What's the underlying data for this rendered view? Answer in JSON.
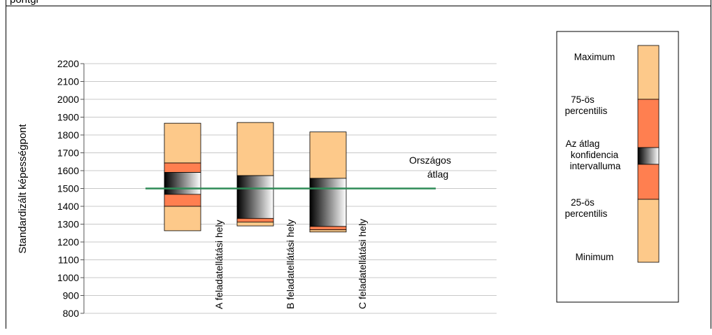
{
  "header": {
    "partial_text": "  pontgi            "
  },
  "chart_data": {
    "type": "box",
    "ylabel": "Standardizált képességpont",
    "ylim": [
      800,
      2200
    ],
    "yticks": [
      800,
      900,
      1000,
      1100,
      1200,
      1300,
      1400,
      1500,
      1600,
      1700,
      1800,
      1900,
      2000,
      2100,
      2200
    ],
    "grid": true,
    "categories": [
      "A feladatellátási hely",
      "B feladatellátási hely",
      "C feladatellátási hely"
    ],
    "boxes": [
      {
        "min": 1263,
        "p25": 1400,
        "ci_low": 1467,
        "ci_high": 1590,
        "p75": 1643,
        "max": 1866
      },
      {
        "min": 1290,
        "p25": 1312,
        "ci_low": 1332,
        "ci_high": 1572,
        "p75": 1572,
        "max": 1870
      },
      {
        "min": 1256,
        "p25": 1268,
        "ci_low": 1287,
        "ci_high": 1557,
        "p75": 1557,
        "max": 1817
      }
    ],
    "reference_line": {
      "label_line1": "Országos",
      "label_line2": "átlag",
      "value": 1500,
      "color": "#2e8b57"
    },
    "colors": {
      "outer": "#fdc98a",
      "inner": "#ff7f50",
      "ci_dark": "#000000",
      "ci_light": "#ffffff",
      "grid": "#c8c8c8"
    },
    "legend": {
      "position": "right",
      "labels": {
        "max": "Maximum",
        "p75_l1": "75-ös",
        "p75_l2": "percentilis",
        "ci_l1": "Az átlag",
        "ci_l2": "konfidencia",
        "ci_l3": "intervalluma",
        "p25_l1": "25-ös",
        "p25_l2": "percentilis",
        "min": "Minimum"
      }
    }
  }
}
